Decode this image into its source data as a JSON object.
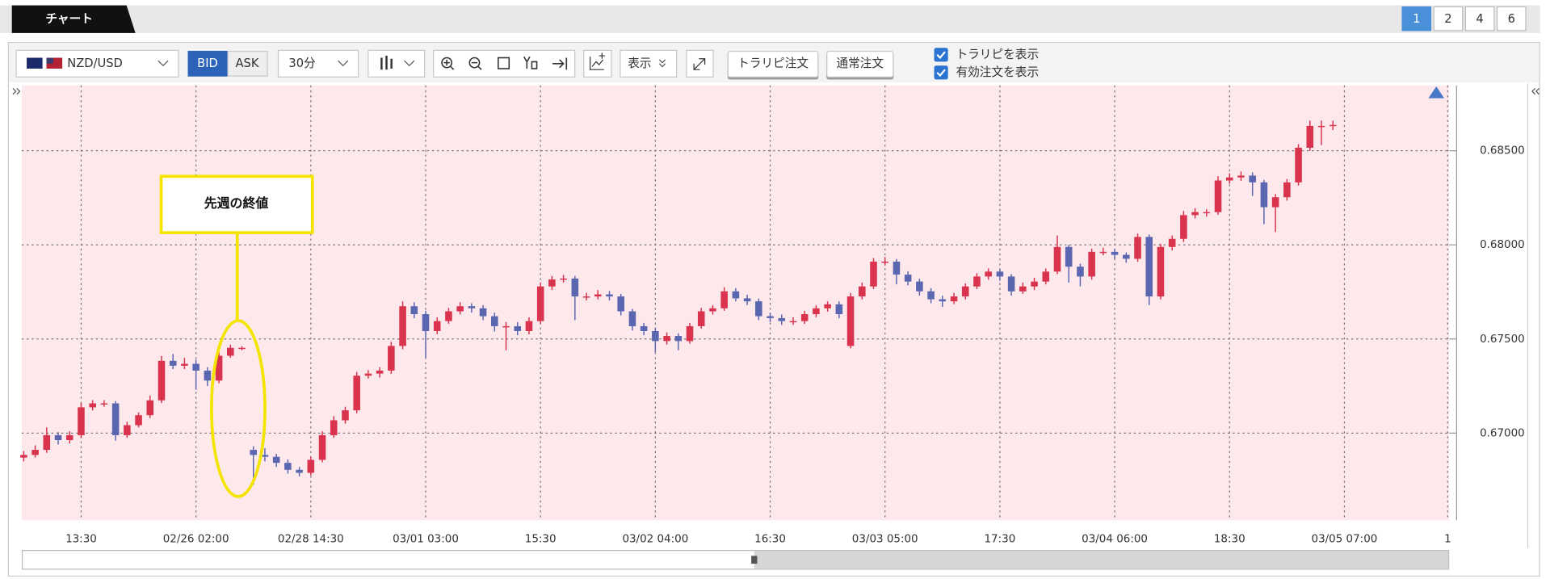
{
  "header": {
    "tab": "チャート",
    "pages": [
      "1",
      "2",
      "4",
      "6"
    ]
  },
  "toolbar": {
    "pair": "NZD/USD",
    "bid": "BID",
    "ask": "ASK",
    "interval": "30分",
    "display": "表示",
    "trap_order": "トラリピ注文",
    "normal_order": "通常注文",
    "checkboxes": [
      "トラリピを表示",
      "有効注文を表示"
    ]
  },
  "chart_data": {
    "type": "candlestick",
    "annotation": "先週の終値",
    "up_color": "#d9334d",
    "down_color": "#5a66b0",
    "background": "#fde8ec",
    "grid": true,
    "categories": [
      null,
      null,
      null,
      null,
      null,
      "13:30",
      null,
      null,
      null,
      null,
      null,
      null,
      null,
      null,
      null,
      "02/26 02:00",
      null,
      null,
      null,
      null,
      null,
      null,
      null,
      null,
      null,
      "02/28 14:30",
      null,
      null,
      null,
      null,
      null,
      null,
      null,
      null,
      null,
      "03/01 03:00",
      null,
      null,
      null,
      null,
      null,
      null,
      null,
      null,
      null,
      "15:30",
      null,
      null,
      null,
      null,
      null,
      null,
      null,
      null,
      null,
      "03/02 04:00",
      null,
      null,
      null,
      null,
      null,
      null,
      null,
      null,
      null,
      "16:30",
      null,
      null,
      null,
      null,
      null,
      null,
      null,
      null,
      null,
      "03/03 05:00",
      null,
      null,
      null,
      null,
      null,
      null,
      null,
      null,
      null,
      "17:30",
      null,
      null,
      null,
      null,
      null,
      null,
      null,
      null,
      null,
      "03/04 06:00",
      null,
      null,
      null,
      null,
      null,
      null,
      null,
      null,
      null,
      "18:30",
      null,
      null,
      null,
      null,
      null,
      null,
      null,
      null,
      null,
      "03/05 07:00",
      null,
      null,
      null,
      null,
      null,
      null,
      null,
      null,
      "1"
    ],
    "open": [
      0.6687,
      0.66884,
      0.66911,
      0.66989,
      0.66963,
      0.66989,
      0.67137,
      0.67158,
      0.67158,
      0.66989,
      0.67042,
      0.67095,
      0.67174,
      0.67384,
      0.67358,
      0.67368,
      0.67332,
      0.67279,
      0.67411,
      0.67453,
      0.66911,
      0.66884,
      0.66874,
      0.66842,
      0.66805,
      0.66789,
      0.66858,
      0.66989,
      0.67068,
      0.67121,
      0.67305,
      0.67316,
      0.67332,
      0.67463,
      0.67674,
      0.67632,
      0.67542,
      0.67595,
      0.67647,
      0.67674,
      0.67663,
      0.67621,
      0.67568,
      0.67568,
      0.67542,
      0.67595,
      0.67779,
      0.67816,
      0.67821,
      0.67726,
      0.67726,
      0.67737,
      0.67726,
      0.67647,
      0.67568,
      0.67542,
      0.67489,
      0.67516,
      0.67489,
      0.67568,
      0.67647,
      0.67663,
      0.67753,
      0.67716,
      0.677,
      0.67621,
      0.67611,
      0.67595,
      0.67595,
      0.67632,
      0.67663,
      0.67684,
      0.67463,
      0.67726,
      0.67779,
      0.67911,
      0.67911,
      0.67842,
      0.67805,
      0.67753,
      0.67711,
      0.677,
      0.67726,
      0.67779,
      0.67832,
      0.67858,
      0.67832,
      0.67753,
      0.67779,
      0.67805,
      0.67858,
      0.67989,
      0.67884,
      0.67832,
      0.67963,
      0.67963,
      0.67947,
      0.67926,
      0.68042,
      0.67726,
      0.67989,
      0.68032,
      0.68158,
      0.68174,
      0.68174,
      0.68342,
      0.68358,
      0.68368,
      0.68332,
      0.682,
      0.68253,
      0.68332,
      0.68516,
      0.68632,
      0.68632,
      null,
      null,
      null,
      null,
      null,
      null,
      null,
      null,
      null,
      null
    ],
    "high": [
      0.66905,
      0.66935,
      0.6703,
      0.67005,
      0.6701,
      0.6716,
      0.67175,
      0.67175,
      0.6717,
      0.6706,
      0.6711,
      0.672,
      0.6741,
      0.6742,
      0.674,
      0.6739,
      0.6735,
      0.6743,
      0.6747,
      0.67462,
      0.6693,
      0.6692,
      0.6689,
      0.6686,
      0.6682,
      0.66875,
      0.6701,
      0.6709,
      0.6714,
      0.67325,
      0.67335,
      0.6735,
      0.67485,
      0.677,
      0.67695,
      0.6765,
      0.67615,
      0.67665,
      0.67695,
      0.6769,
      0.6768,
      0.6764,
      0.6759,
      0.6759,
      0.67615,
      0.678,
      0.67835,
      0.6784,
      0.67835,
      0.67745,
      0.6776,
      0.67755,
      0.6774,
      0.6766,
      0.67585,
      0.6756,
      0.67535,
      0.6753,
      0.67585,
      0.67665,
      0.6768,
      0.67775,
      0.6777,
      0.67735,
      0.67715,
      0.6764,
      0.6763,
      0.67615,
      0.6765,
      0.6768,
      0.677,
      0.677,
      0.67745,
      0.678,
      0.6793,
      0.67935,
      0.67925,
      0.6786,
      0.6782,
      0.6777,
      0.6773,
      0.67745,
      0.67795,
      0.6785,
      0.67875,
      0.6787,
      0.67845,
      0.678,
      0.67825,
      0.67875,
      0.6805,
      0.68,
      0.679,
      0.6798,
      0.67985,
      0.6798,
      0.6796,
      0.6806,
      0.68055,
      0.68005,
      0.6805,
      0.6818,
      0.68195,
      0.6819,
      0.68365,
      0.6838,
      0.6839,
      0.68385,
      0.68345,
      0.6827,
      0.6835,
      0.68535,
      0.6866,
      0.6866,
      0.6866,
      null,
      null,
      null,
      null,
      null,
      null,
      null,
      null,
      null,
      null
    ],
    "low": [
      0.6685,
      0.6687,
      0.66895,
      0.6694,
      0.66945,
      0.66975,
      0.6712,
      0.6714,
      0.6696,
      0.66975,
      0.6703,
      0.6708,
      0.6716,
      0.6734,
      0.6734,
      0.6723,
      0.6725,
      0.67265,
      0.674,
      0.6744,
      0.66726,
      0.6685,
      0.6682,
      0.66785,
      0.6677,
      0.66775,
      0.66845,
      0.66975,
      0.6705,
      0.67105,
      0.6729,
      0.67295,
      0.67315,
      0.67445,
      0.6761,
      0.674,
      0.67525,
      0.6758,
      0.6763,
      0.6764,
      0.676,
      0.6754,
      0.6744,
      0.6752,
      0.67525,
      0.6758,
      0.6776,
      0.678,
      0.676,
      0.67705,
      0.6771,
      0.67705,
      0.67625,
      0.67545,
      0.6752,
      0.6743,
      0.6747,
      0.6744,
      0.67475,
      0.67555,
      0.6763,
      0.6765,
      0.677,
      0.6768,
      0.676,
      0.6759,
      0.67575,
      0.67575,
      0.6758,
      0.67615,
      0.67645,
      0.6761,
      0.6745,
      0.6771,
      0.67765,
      0.6789,
      0.6779,
      0.67785,
      0.6773,
      0.6769,
      0.6767,
      0.67685,
      0.6771,
      0.67765,
      0.67815,
      0.6781,
      0.6773,
      0.6774,
      0.6776,
      0.6779,
      0.67845,
      0.678,
      0.6778,
      0.67815,
      0.67945,
      0.67925,
      0.67905,
      0.6791,
      0.6768,
      0.6771,
      0.6797,
      0.68015,
      0.6814,
      0.6815,
      0.6816,
      0.68325,
      0.6834,
      0.6826,
      0.6811,
      0.68068,
      0.68235,
      0.68315,
      0.685,
      0.6853,
      0.6861,
      null,
      null,
      null,
      null,
      null,
      null,
      null,
      null,
      null,
      null
    ],
    "close": [
      0.66884,
      0.66911,
      0.66989,
      0.66963,
      0.66989,
      0.67137,
      0.67158,
      0.67158,
      0.66989,
      0.67042,
      0.67095,
      0.67174,
      0.67384,
      0.67358,
      0.67368,
      0.67332,
      0.67279,
      0.67411,
      0.67453,
      0.67453,
      0.66884,
      0.66874,
      0.66842,
      0.66805,
      0.66789,
      0.66858,
      0.66989,
      0.67068,
      0.67121,
      0.67305,
      0.67316,
      0.67332,
      0.67463,
      0.67674,
      0.67632,
      0.67542,
      0.67595,
      0.67647,
      0.67674,
      0.67663,
      0.67621,
      0.67568,
      0.67568,
      0.67542,
      0.67595,
      0.67779,
      0.67816,
      0.67821,
      0.67726,
      0.67726,
      0.67737,
      0.67726,
      0.67647,
      0.67568,
      0.67542,
      0.67489,
      0.67516,
      0.67489,
      0.67568,
      0.67647,
      0.67663,
      0.67753,
      0.67716,
      0.677,
      0.67621,
      0.67611,
      0.67595,
      0.67595,
      0.67632,
      0.67663,
      0.67684,
      0.67632,
      0.67726,
      0.67779,
      0.67911,
      0.67911,
      0.67842,
      0.67805,
      0.67753,
      0.67711,
      0.677,
      0.67726,
      0.67779,
      0.67832,
      0.67858,
      0.67832,
      0.67753,
      0.67779,
      0.67805,
      0.67858,
      0.67989,
      0.67884,
      0.67832,
      0.67963,
      0.67963,
      0.67947,
      0.67926,
      0.68042,
      0.67726,
      0.67989,
      0.68032,
      0.68158,
      0.68174,
      0.68174,
      0.68342,
      0.68358,
      0.68368,
      0.68332,
      0.682,
      0.68253,
      0.68332,
      0.68516,
      0.68632,
      0.68632,
      0.68637,
      null,
      null,
      null,
      null,
      null,
      null,
      null,
      null,
      null,
      null
    ],
    "ylim": [
      0.66537,
      0.68847
    ],
    "yticks": [
      {
        "value": 0.67,
        "label": "0.67000"
      },
      {
        "value": 0.675,
        "label": "0.67500"
      },
      {
        "value": 0.68,
        "label": "0.68000"
      },
      {
        "value": 0.685,
        "label": "0.68500"
      }
    ]
  }
}
